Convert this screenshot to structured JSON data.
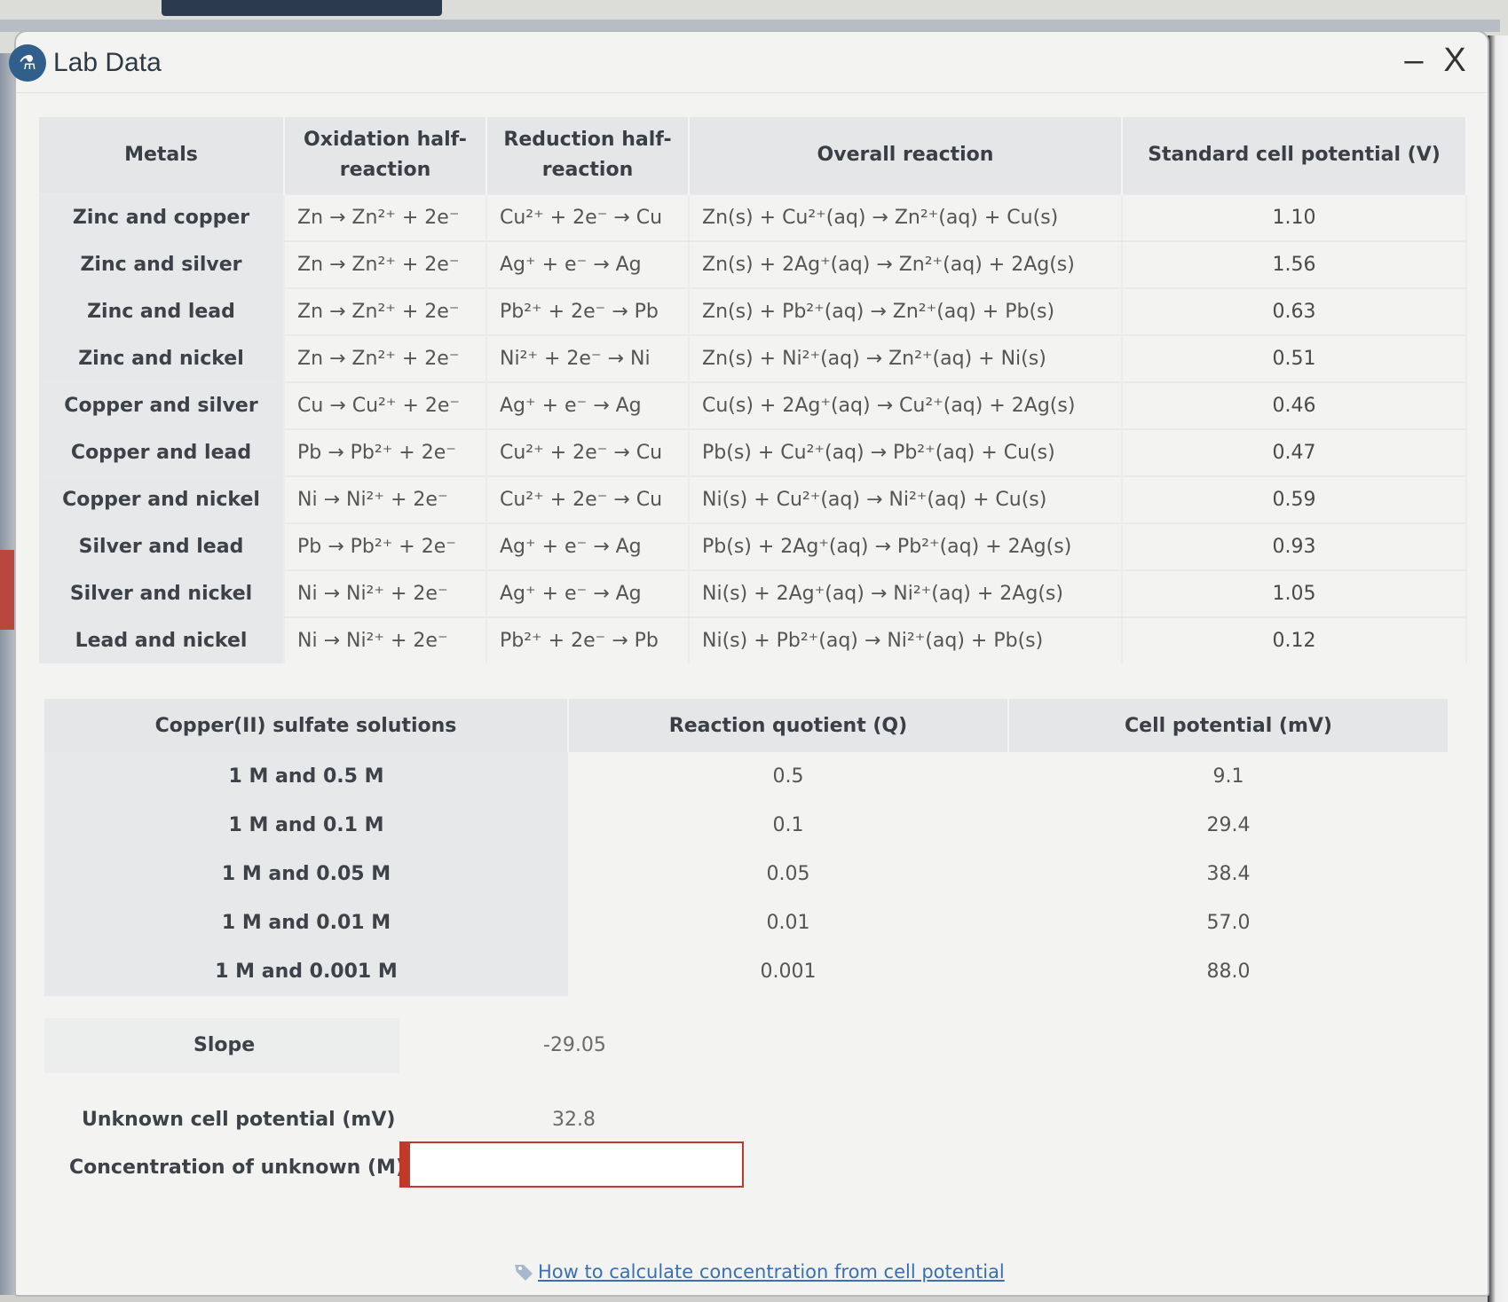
{
  "window": {
    "title": "Lab Data",
    "minimize_label": "–",
    "close_label": "X"
  },
  "cell_table": {
    "headers": [
      "Metals",
      "Oxidation half-reaction",
      "Reduction half-reaction",
      "Overall reaction",
      "Standard cell potential (V)"
    ],
    "rows": [
      {
        "metals": "Zinc and copper",
        "oxidation": "Zn → Zn²⁺ + 2e⁻",
        "reduction": "Cu²⁺ + 2e⁻ → Cu",
        "overall": "Zn(s) + Cu²⁺(aq) → Zn²⁺(aq) + Cu(s)",
        "potential": "1.10"
      },
      {
        "metals": "Zinc and silver",
        "oxidation": "Zn → Zn²⁺ + 2e⁻",
        "reduction": "Ag⁺ + e⁻ → Ag",
        "overall": "Zn(s) + 2Ag⁺(aq) → Zn²⁺(aq) + 2Ag(s)",
        "potential": "1.56"
      },
      {
        "metals": "Zinc and lead",
        "oxidation": "Zn → Zn²⁺ + 2e⁻",
        "reduction": "Pb²⁺ + 2e⁻ → Pb",
        "overall": "Zn(s) + Pb²⁺(aq) → Zn²⁺(aq) + Pb(s)",
        "potential": "0.63"
      },
      {
        "metals": "Zinc and nickel",
        "oxidation": "Zn → Zn²⁺ + 2e⁻",
        "reduction": "Ni²⁺ + 2e⁻ → Ni",
        "overall": "Zn(s) + Ni²⁺(aq) → Zn²⁺(aq) + Ni(s)",
        "potential": "0.51"
      },
      {
        "metals": "Copper and silver",
        "oxidation": "Cu → Cu²⁺ + 2e⁻",
        "reduction": "Ag⁺ + e⁻ → Ag",
        "overall": "Cu(s) + 2Ag⁺(aq) → Cu²⁺(aq) + 2Ag(s)",
        "potential": "0.46"
      },
      {
        "metals": "Copper and lead",
        "oxidation": "Pb → Pb²⁺ + 2e⁻",
        "reduction": "Cu²⁺ + 2e⁻ → Cu",
        "overall": "Pb(s) + Cu²⁺(aq) → Pb²⁺(aq) + Cu(s)",
        "potential": "0.47"
      },
      {
        "metals": "Copper and nickel",
        "oxidation": "Ni → Ni²⁺ + 2e⁻",
        "reduction": "Cu²⁺ + 2e⁻ → Cu",
        "overall": "Ni(s) + Cu²⁺(aq) → Ni²⁺(aq) + Cu(s)",
        "potential": "0.59"
      },
      {
        "metals": "Silver and lead",
        "oxidation": "Pb → Pb²⁺ + 2e⁻",
        "reduction": "Ag⁺ + e⁻ → Ag",
        "overall": "Pb(s) + 2Ag⁺(aq) → Pb²⁺(aq) + 2Ag(s)",
        "potential": "0.93"
      },
      {
        "metals": "Silver and nickel",
        "oxidation": "Ni → Ni²⁺ + 2e⁻",
        "reduction": "Ag⁺ + e⁻ → Ag",
        "overall": "Ni(s) + 2Ag⁺(aq) → Ni²⁺(aq) + 2Ag(s)",
        "potential": "1.05"
      },
      {
        "metals": "Lead and nickel",
        "oxidation": "Ni → Ni²⁺ + 2e⁻",
        "reduction": "Pb²⁺ + 2e⁻ → Pb",
        "overall": "Ni(s) + Pb²⁺(aq) → Ni²⁺(aq) + Pb(s)",
        "potential": "0.12"
      }
    ]
  },
  "concentration_table": {
    "headers": [
      "Copper(II) sulfate solutions",
      "Reaction quotient (Q)",
      "Cell potential (mV)"
    ],
    "rows": [
      {
        "solutions": "1 M and 0.5 M",
        "q": "0.5",
        "potential": "9.1"
      },
      {
        "solutions": "1 M and 0.1 M",
        "q": "0.1",
        "potential": "29.4"
      },
      {
        "solutions": "1 M and 0.05 M",
        "q": "0.05",
        "potential": "38.4"
      },
      {
        "solutions": "1 M and 0.01 M",
        "q": "0.01",
        "potential": "57.0"
      },
      {
        "solutions": "1 M and 0.001 M",
        "q": "0.001",
        "potential": "88.0"
      }
    ]
  },
  "slope": {
    "label": "Slope",
    "value": "-29.05"
  },
  "unknown": {
    "potential_label": "Unknown cell potential (mV)",
    "potential_value": "32.8",
    "concentration_label": "Concentration of unknown (M)",
    "concentration_value": ""
  },
  "help_link": {
    "label": "How to calculate concentration from cell potential"
  },
  "colors": {
    "accent_red": "#c0392b",
    "link_blue": "#3b6fb4",
    "header_gray": "#e4e6e8"
  }
}
